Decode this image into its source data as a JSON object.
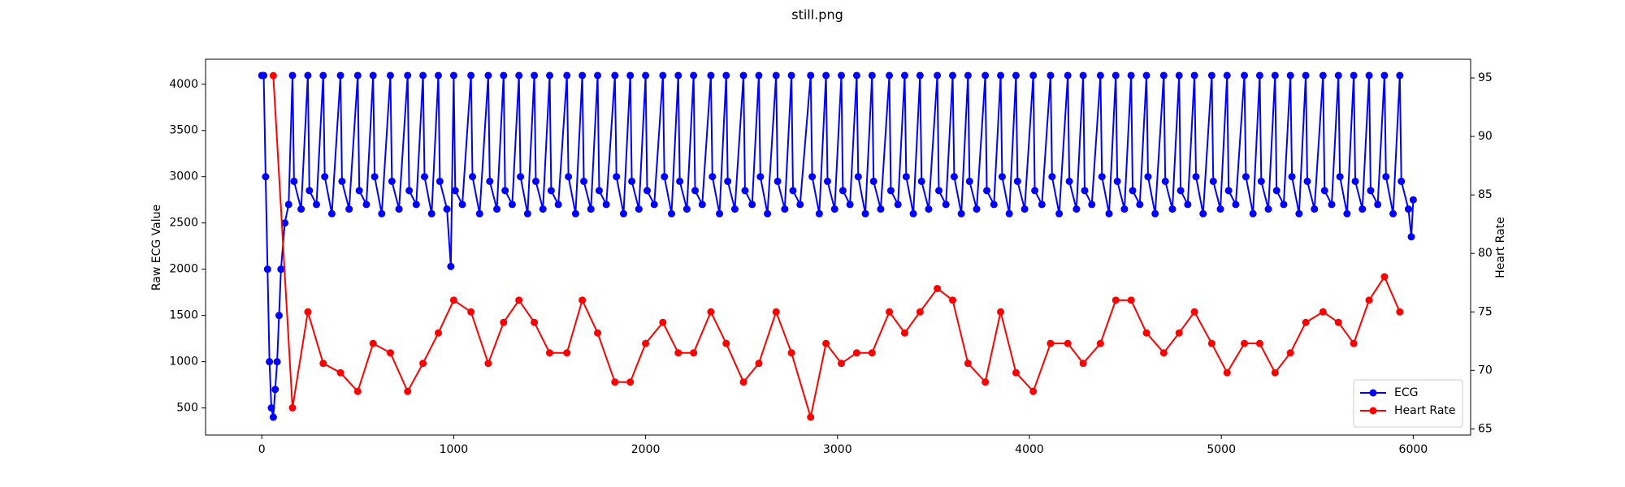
{
  "chart_data": {
    "type": "line",
    "title": "still.png",
    "ylabel": "Raw ECG Value",
    "y2label": "Heart Rate",
    "xlim": [
      -293,
      6299
    ],
    "xticks": [
      0,
      1000,
      2000,
      3000,
      4000,
      5000,
      6000
    ],
    "ylim": [
      207,
      4270
    ],
    "yticks": [
      500,
      1000,
      1500,
      2000,
      2500,
      3000,
      3500,
      4000
    ],
    "y2lim": [
      64.47,
      96.6
    ],
    "y2ticks": [
      65,
      70,
      75,
      80,
      85,
      90,
      95
    ],
    "grid": false,
    "legend": "lower right",
    "marker": "o",
    "series": [
      {
        "name": "ECG",
        "color": "#0000ff",
        "x": [
          0,
          10,
          20,
          30,
          40,
          50,
          60,
          70,
          80,
          90,
          100,
          120,
          140,
          160,
          168,
          205,
          240,
          248,
          285,
          320,
          328,
          365,
          410,
          418,
          455,
          500,
          508,
          545,
          580,
          588,
          625,
          670,
          678,
          715,
          760,
          768,
          805,
          840,
          848,
          885,
          920,
          928,
          965,
          985,
          1000,
          1008,
          1045,
          1090,
          1098,
          1135,
          1180,
          1188,
          1225,
          1260,
          1268,
          1305,
          1340,
          1348,
          1385,
          1420,
          1428,
          1465,
          1500,
          1508,
          1545,
          1590,
          1598,
          1635,
          1670,
          1678,
          1715,
          1750,
          1758,
          1795,
          1840,
          1848,
          1885,
          1920,
          1928,
          1965,
          2000,
          2008,
          2045,
          2090,
          2098,
          2135,
          2170,
          2178,
          2215,
          2250,
          2258,
          2295,
          2340,
          2348,
          2385,
          2420,
          2428,
          2465,
          2510,
          2518,
          2555,
          2590,
          2598,
          2635,
          2680,
          2688,
          2725,
          2760,
          2768,
          2805,
          2860,
          2868,
          2905,
          2940,
          2948,
          2985,
          3020,
          3028,
          3065,
          3100,
          3108,
          3145,
          3180,
          3188,
          3225,
          3270,
          3278,
          3315,
          3350,
          3358,
          3395,
          3430,
          3438,
          3475,
          3520,
          3528,
          3565,
          3600,
          3608,
          3645,
          3680,
          3688,
          3725,
          3770,
          3778,
          3815,
          3850,
          3858,
          3895,
          3930,
          3938,
          3975,
          4020,
          4028,
          4065,
          4110,
          4118,
          4155,
          4200,
          4208,
          4245,
          4280,
          4288,
          4325,
          4370,
          4378,
          4415,
          4450,
          4458,
          4495,
          4530,
          4538,
          4575,
          4610,
          4618,
          4655,
          4700,
          4708,
          4745,
          4780,
          4788,
          4825,
          4860,
          4868,
          4905,
          4950,
          4958,
          4995,
          5030,
          5038,
          5075,
          5120,
          5128,
          5165,
          5200,
          5208,
          5245,
          5280,
          5288,
          5325,
          5360,
          5368,
          5405,
          5440,
          5448,
          5485,
          5530,
          5538,
          5575,
          5610,
          5618,
          5655,
          5690,
          5698,
          5735,
          5770,
          5778,
          5815,
          5850,
          5858,
          5895,
          5930,
          5938,
          5975,
          5990,
          6000
        ],
        "values": [
          4095,
          4095,
          3000,
          2000,
          1000,
          500,
          400,
          700,
          1000,
          1500,
          2000,
          2500,
          2700,
          4095,
          2950,
          2650,
          4095,
          2850,
          2700,
          4095,
          3000,
          2600,
          4095,
          2950,
          2650,
          4095,
          2850,
          2700,
          4095,
          3000,
          2600,
          4095,
          2950,
          2650,
          4095,
          2850,
          2700,
          4095,
          3000,
          2600,
          4095,
          2950,
          2650,
          2030,
          4095,
          2850,
          2700,
          4095,
          3000,
          2600,
          4095,
          2950,
          2650,
          4095,
          2850,
          2700,
          4095,
          3000,
          2600,
          4095,
          2950,
          2650,
          4095,
          2850,
          2700,
          4095,
          3000,
          2600,
          4095,
          2950,
          2650,
          4095,
          2850,
          2700,
          4095,
          3000,
          2600,
          4095,
          2950,
          2650,
          4095,
          2850,
          2700,
          4095,
          3000,
          2600,
          4095,
          2950,
          2650,
          4095,
          2850,
          2700,
          4095,
          3000,
          2600,
          4095,
          2950,
          2650,
          4095,
          2850,
          2700,
          4095,
          3000,
          2600,
          4095,
          2950,
          2650,
          4095,
          2850,
          2700,
          4095,
          3000,
          2600,
          4095,
          2950,
          2650,
          4095,
          2850,
          2700,
          4095,
          3000,
          2600,
          4095,
          2950,
          2650,
          4095,
          2850,
          2700,
          4095,
          3000,
          2600,
          4095,
          2950,
          2650,
          4095,
          2850,
          2700,
          4095,
          3000,
          2600,
          4095,
          2950,
          2650,
          4095,
          2850,
          2700,
          4095,
          3000,
          2600,
          4095,
          2950,
          2650,
          4095,
          2850,
          2700,
          4095,
          3000,
          2600,
          4095,
          2950,
          2650,
          4095,
          2850,
          2700,
          4095,
          3000,
          2600,
          4095,
          2950,
          2650,
          4095,
          2850,
          2700,
          4095,
          3000,
          2600,
          4095,
          2950,
          2650,
          4095,
          2850,
          2700,
          4095,
          3000,
          2600,
          4095,
          2950,
          2650,
          4095,
          2850,
          2700,
          4095,
          3000,
          2600,
          4095,
          2950,
          2650,
          4095,
          2850,
          2700,
          4095,
          3000,
          2600,
          4095,
          2950,
          2650,
          4095,
          2850,
          2700,
          4095,
          3000,
          2600,
          4095,
          2950,
          2650,
          4095,
          2850,
          2700,
          4095,
          3000,
          2600,
          4095,
          2950,
          2650,
          2350,
          2750
        ]
      },
      {
        "name": "Heart Rate",
        "color": "#ff0000",
        "axis": "y2",
        "x": [
          60,
          160,
          240,
          320,
          410,
          500,
          580,
          670,
          760,
          840,
          920,
          1000,
          1090,
          1180,
          1260,
          1340,
          1420,
          1500,
          1590,
          1670,
          1750,
          1840,
          1920,
          2000,
          2090,
          2170,
          2250,
          2340,
          2420,
          2510,
          2590,
          2680,
          2760,
          2860,
          2940,
          3020,
          3100,
          3180,
          3270,
          3350,
          3430,
          3520,
          3600,
          3680,
          3770,
          3850,
          3930,
          4020,
          4110,
          4200,
          4280,
          4370,
          4450,
          4530,
          4610,
          4700,
          4780,
          4860,
          4950,
          5030,
          5120,
          5200,
          5280,
          5360,
          5440,
          5530,
          5610,
          5690,
          5770,
          5850,
          5930
        ],
        "values": [
          95.2,
          66.8,
          75,
          70.6,
          69.8,
          68.2,
          72.3,
          71.5,
          68.2,
          70.6,
          73.2,
          76,
          75,
          70.6,
          74.1,
          76,
          74.1,
          71.5,
          71.5,
          76,
          73.2,
          69,
          69,
          72.3,
          74.1,
          71.5,
          71.5,
          75,
          72.3,
          69,
          70.6,
          75,
          71.5,
          66,
          72.3,
          70.6,
          71.5,
          71.5,
          75,
          73.2,
          75,
          77,
          76,
          70.6,
          69,
          75,
          69.8,
          68.2,
          72.3,
          72.3,
          70.6,
          72.3,
          76,
          76,
          73.2,
          71.5,
          73.2,
          75,
          72.3,
          69.8,
          72.3,
          72.3,
          69.8,
          71.5,
          74.1,
          75,
          74.1,
          72.3,
          76,
          78,
          75
        ]
      }
    ]
  }
}
